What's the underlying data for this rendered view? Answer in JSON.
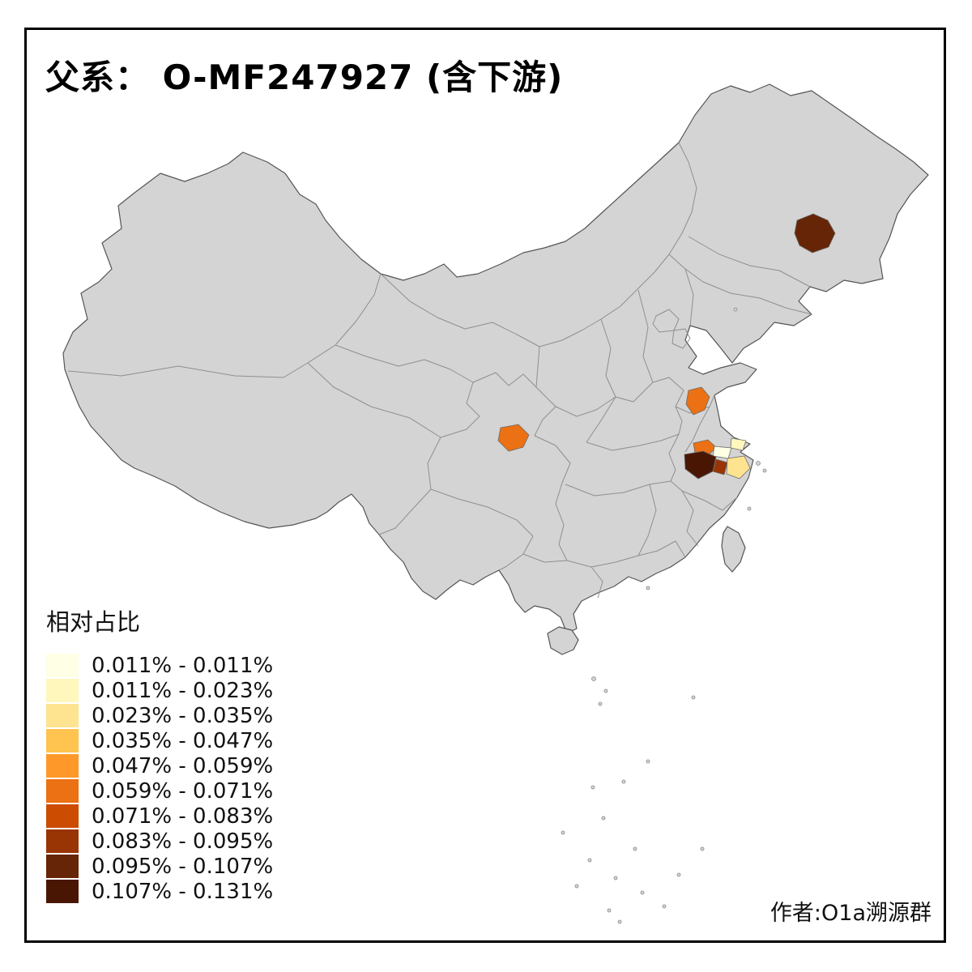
{
  "title": "父系： O-MF247927 (含下游)",
  "attribution": "作者:O1a溯源群",
  "legend": {
    "title": "相对占比",
    "items": [
      {
        "label": "0.011% - 0.011%",
        "color": "#FFFFE5"
      },
      {
        "label": "0.011% - 0.023%",
        "color": "#FFF7BC"
      },
      {
        "label": "0.023% - 0.035%",
        "color": "#FEE391"
      },
      {
        "label": "0.035% - 0.047%",
        "color": "#FEC44F"
      },
      {
        "label": "0.047% - 0.059%",
        "color": "#FE9929"
      },
      {
        "label": "0.059% - 0.071%",
        "color": "#EC7014"
      },
      {
        "label": "0.071% - 0.083%",
        "color": "#CC4C02"
      },
      {
        "label": "0.083% - 0.095%",
        "color": "#993404"
      },
      {
        "label": "0.095% - 0.107%",
        "color": "#662506"
      },
      {
        "label": "0.107% - 0.131%",
        "color": "#4A1604"
      }
    ]
  },
  "map": {
    "base_color": "#D4D4D4",
    "outline_color": "#555555",
    "province_line_color": "#8F8F8F",
    "regions": [
      {
        "id": "northeast-prefecture",
        "color": "#662506"
      },
      {
        "id": "jiangsu-prefecture",
        "color": "#EC7014"
      },
      {
        "id": "chengdu-prefecture",
        "color": "#EC7014"
      },
      {
        "id": "huzhou-prefecture",
        "color": "#EC7014"
      },
      {
        "id": "shanghai-prefecture",
        "color": "#FFF7BC"
      },
      {
        "id": "jiaxing-prefecture",
        "color": "#FFFFE5"
      },
      {
        "id": "hangzhou-prefecture",
        "color": "#4A1604"
      },
      {
        "id": "shaoxing-prefecture",
        "color": "#993404"
      },
      {
        "id": "ningbo-prefecture",
        "color": "#FEE391"
      }
    ]
  }
}
